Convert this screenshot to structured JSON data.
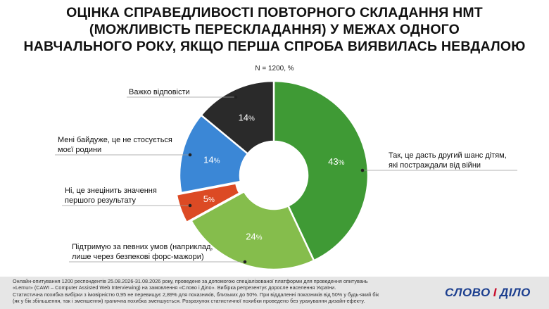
{
  "chart_data": {
    "type": "pie",
    "donut": true,
    "title_lines": [
      "ОЦІНКА СПРАВЕДЛИВОСТІ ПОВТОРНОГО СКЛАДАННЯ НМТ",
      "(МОЖЛИВІСТЬ ПЕРЕСКЛАДАННЯ) У МЕЖАХ ОДНОГО",
      "НАВЧАЛЬНОГО РОКУ, ЯКЩО ПЕРША СПРОБА ВИЯВИЛАСЬ НЕВДАЛОЮ"
    ],
    "subtitle": "N = 1200, %",
    "slices": [
      {
        "label_lines": [
          "Так, це дасть другий шанс дітям,",
          "які постраждали від війни"
        ],
        "value": 43,
        "display": "43",
        "color": "#3f9a35"
      },
      {
        "label_lines": [
          "Підтримую за певних умов (наприклад,",
          "лише через безпекові форс-мажори)"
        ],
        "value": 24,
        "display": "24",
        "color": "#85bd4c"
      },
      {
        "label_lines": [
          "Ні, це знецінить значення",
          "першого результату"
        ],
        "value": 5,
        "display": "5",
        "color": "#dc4a24"
      },
      {
        "label_lines": [
          "Мені байдуже, це не стосується",
          "моєї родини"
        ],
        "value": 14,
        "display": "14",
        "color": "#3b87d6"
      },
      {
        "label_lines": [
          "Важко відповісти"
        ],
        "value": 14,
        "display": "14",
        "color": "#2a2a2a"
      }
    ],
    "percent_suffix": "%"
  },
  "footer": {
    "lines": [
      "Онлайн-опитування 1200 респондентів 25.08.2026-31.08.2026 року, проведене за допомогою спеціалізованої платформи для проведення опитувань",
      "«Lemur» (CAWI – Computer Assisted Web Interviewing) на замовлення «Слово і Діло». Вибірка репрезентує доросле населення України.",
      "Статистична похибка вибірки з імовірністю 0,95 не перевищує 2,89% для показників, близьких до 50%. При віддаленні показників від 50% у будь-який бік",
      "(як у бік збільшення, так і зменшення) гранична похибка зменшується. Розрахунок статистичної похибки проведено без урахування дизайн-ефекту."
    ],
    "brand_part1": "СЛОВО",
    "brand_part2": "І",
    "brand_part3": "ДІЛО"
  }
}
